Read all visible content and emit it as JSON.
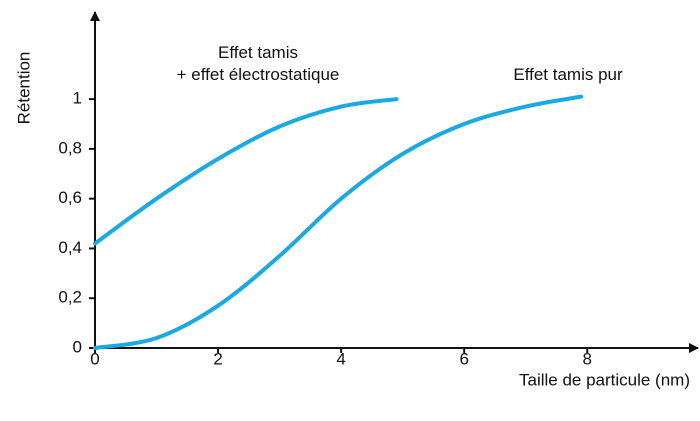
{
  "chart_data": {
    "type": "line",
    "ylabel": "Rétention",
    "xlabel": "Taille de particule (nm)",
    "xlim": [
      0,
      9.8
    ],
    "ylim": [
      0,
      1.35
    ],
    "xticks": [
      0,
      2,
      4,
      6,
      8
    ],
    "yticks": [
      0,
      {
        "value": 0.2,
        "label": "0,2"
      },
      {
        "value": 0.4,
        "label": "0,4"
      },
      {
        "value": 0.6,
        "label": "0,6"
      },
      {
        "value": 0.8,
        "label": "0,8"
      },
      1
    ],
    "series": [
      {
        "name": "Effet tamis\n+ effet électrostatique",
        "color": "#1aa9e2",
        "x": [
          0,
          1,
          2,
          3,
          4,
          4.9
        ],
        "values": [
          0.42,
          0.6,
          0.76,
          0.89,
          0.97,
          1.0
        ]
      },
      {
        "name": "Effet tamis pur",
        "color": "#1aa9e2",
        "x": [
          0,
          1,
          2,
          3,
          4,
          5,
          6,
          7,
          7.9
        ],
        "values": [
          0,
          0.04,
          0.17,
          0.37,
          0.6,
          0.78,
          0.9,
          0.97,
          1.01
        ]
      }
    ]
  }
}
